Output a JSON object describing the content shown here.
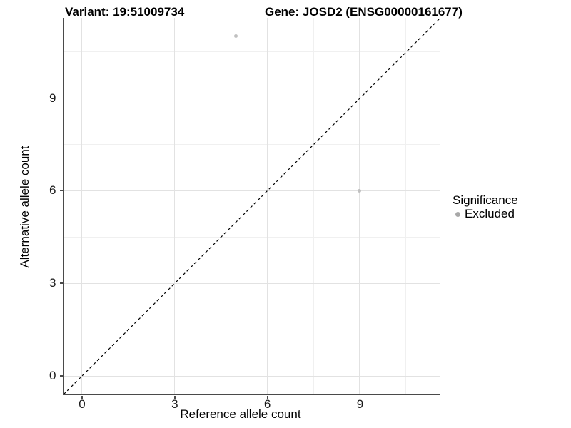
{
  "chart_data": {
    "type": "scatter",
    "title_left": "Variant: 19:51009734",
    "title_right": "Gene: JOSD2 (ENSG00000161677)",
    "xlabel": "Reference allele count",
    "ylabel": "Alternative allele count",
    "xlim": [
      -0.6,
      11.6
    ],
    "ylim": [
      -0.6,
      11.6
    ],
    "xticks": [
      0,
      3,
      6,
      9
    ],
    "yticks": [
      0,
      3,
      6,
      9
    ],
    "xminor": [
      1.5,
      4.5,
      7.5,
      10.5
    ],
    "yminor": [
      1.5,
      4.5,
      7.5,
      10.5
    ],
    "grid": "on",
    "points": [
      {
        "x": 5,
        "y": 11,
        "significance": "Excluded"
      },
      {
        "x": 9,
        "y": 6,
        "significance": "Excluded"
      }
    ],
    "identity_line": {
      "equation": "y = x",
      "style": "dashed",
      "color": "#000000"
    },
    "legend": {
      "position": "right",
      "title": "Significance",
      "items": [
        {
          "label": "Excluded",
          "color": "#a8a8a8"
        }
      ]
    },
    "colors": {
      "point": "#c0c0c0",
      "legend_key": "#a8a8a8",
      "grid_major": "#e2e2e2",
      "grid_minor": "#f0f0f0",
      "axis_line": "#4a4a4a",
      "background": "#ffffff"
    }
  }
}
